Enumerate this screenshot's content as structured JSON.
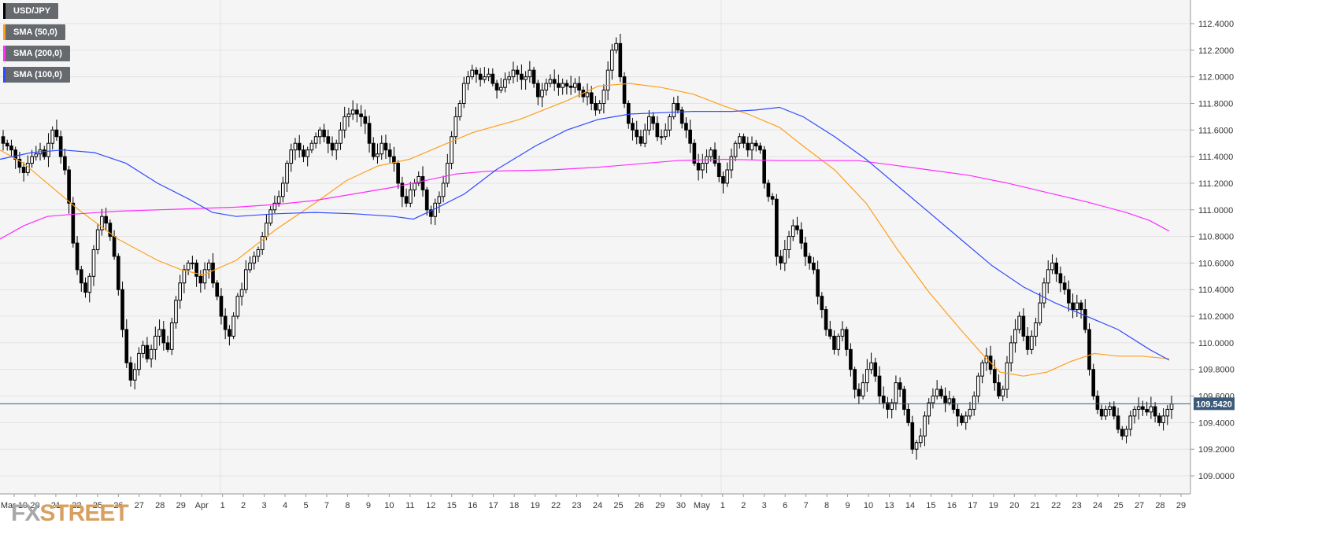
{
  "legend": [
    {
      "label": "USD/JPY",
      "color": "#000000"
    },
    {
      "label": "SMA (50,0)",
      "color": "#ff9f1c"
    },
    {
      "label": "SMA (200,0)",
      "color": "#ff2bff"
    },
    {
      "label": "SMA (100,0)",
      "color": "#2f4bff"
    }
  ],
  "logo": {
    "fx": "FX",
    "street": "STREET"
  },
  "colors": {
    "background": "#f5f5f5",
    "grid": "#e2e2e2",
    "price_line": "#3c5a7a",
    "candle_up": "#ffffff",
    "candle_down": "#000000"
  },
  "chart_data": {
    "type": "candlestick",
    "title": "",
    "xlabel": "",
    "ylabel": "",
    "ylim": [
      108.9,
      112.5
    ],
    "y_ticks": [
      "109.0000",
      "109.2000",
      "109.4000",
      "109.6000",
      "109.8000",
      "110.0000",
      "110.2000",
      "110.4000",
      "110.6000",
      "110.8000",
      "111.0000",
      "111.2000",
      "111.4000",
      "111.6000",
      "111.8000",
      "112.0000",
      "112.2000",
      "112.4000"
    ],
    "current_price": "109.5420",
    "x_ticks": [
      "Mar 19",
      "20",
      "21",
      "22",
      "25",
      "26",
      "27",
      "28",
      "29",
      "Apr",
      "1",
      "2",
      "3",
      "4",
      "5",
      "7",
      "8",
      "9",
      "10",
      "11",
      "12",
      "15",
      "16",
      "17",
      "18",
      "19",
      "22",
      "23",
      "24",
      "25",
      "26",
      "29",
      "30",
      "May",
      "1",
      "2",
      "3",
      "6",
      "7",
      "8",
      "9",
      "10",
      "13",
      "14",
      "15",
      "16",
      "17",
      "19",
      "20",
      "21",
      "22",
      "23",
      "24",
      "25",
      "27",
      "28",
      "29"
    ],
    "closes": [
      111.5,
      111.48,
      111.45,
      111.38,
      111.32,
      111.28,
      111.35,
      111.4,
      111.42,
      111.45,
      111.4,
      111.5,
      111.6,
      111.55,
      111.4,
      111.3,
      111.05,
      110.75,
      110.55,
      110.45,
      110.38,
      110.5,
      110.7,
      110.85,
      110.95,
      110.9,
      110.8,
      110.65,
      110.4,
      110.1,
      109.85,
      109.72,
      109.8,
      109.92,
      109.98,
      109.88,
      109.95,
      110.05,
      110.1,
      110.0,
      109.95,
      110.15,
      110.32,
      110.45,
      110.55,
      110.6,
      110.6,
      110.5,
      110.45,
      110.55,
      110.6,
      110.45,
      110.35,
      110.2,
      110.1,
      110.05,
      110.2,
      110.35,
      110.4,
      110.55,
      110.6,
      110.65,
      110.7,
      110.8,
      110.9,
      111.0,
      111.05,
      111.1,
      111.2,
      111.35,
      111.45,
      111.5,
      111.45,
      111.4,
      111.45,
      111.5,
      111.55,
      111.6,
      111.55,
      111.5,
      111.45,
      111.5,
      111.6,
      111.7,
      111.72,
      111.75,
      111.72,
      111.7,
      111.65,
      111.5,
      111.4,
      111.42,
      111.5,
      111.45,
      111.4,
      111.35,
      111.2,
      111.1,
      111.05,
      111.15,
      111.2,
      111.25,
      111.15,
      111.0,
      110.95,
      111.05,
      111.1,
      111.2,
      111.35,
      111.55,
      111.7,
      111.8,
      111.95,
      112.0,
      112.05,
      112.02,
      111.98,
      112.0,
      112.02,
      111.95,
      111.9,
      111.92,
      111.98,
      112.0,
      112.05,
      112.02,
      111.98,
      112.0,
      112.05,
      111.95,
      111.85,
      111.9,
      111.95,
      111.98,
      111.95,
      111.92,
      111.95,
      111.93,
      111.92,
      111.95,
      111.9,
      111.85,
      111.88,
      111.8,
      111.75,
      111.8,
      111.9,
      112.05,
      112.2,
      112.25,
      112.0,
      111.8,
      111.65,
      111.6,
      111.55,
      111.5,
      111.6,
      111.7,
      111.65,
      111.55,
      111.55,
      111.6,
      111.7,
      111.8,
      111.75,
      111.65,
      111.6,
      111.5,
      111.35,
      111.3,
      111.35,
      111.4,
      111.45,
      111.35,
      111.25,
      111.2,
      111.3,
      111.4,
      111.5,
      111.55,
      111.5,
      111.45,
      111.5,
      111.48,
      111.45,
      111.2,
      111.1,
      111.08,
      110.65,
      110.6,
      110.7,
      110.8,
      110.88,
      110.85,
      110.75,
      110.65,
      110.6,
      110.55,
      110.35,
      110.25,
      110.1,
      110.05,
      109.95,
      110.05,
      110.1,
      109.95,
      109.8,
      109.65,
      109.6,
      109.7,
      109.8,
      109.85,
      109.75,
      109.6,
      109.55,
      109.5,
      109.55,
      109.7,
      109.65,
      109.5,
      109.4,
      109.2,
      109.25,
      109.3,
      109.45,
      109.55,
      109.6,
      109.65,
      109.6,
      109.55,
      109.58,
      109.5,
      109.45,
      109.4,
      109.45,
      109.5,
      109.6,
      109.75,
      109.85,
      109.9,
      109.8,
      109.7,
      109.6,
      109.65,
      109.85,
      110.0,
      110.1,
      110.2,
      110.05,
      109.95,
      110.05,
      110.15,
      110.3,
      110.45,
      110.55,
      110.6,
      110.52,
      110.45,
      110.4,
      110.3,
      110.25,
      110.3,
      110.25,
      110.1,
      109.8,
      109.6,
      109.5,
      109.45,
      109.5,
      109.52,
      109.45,
      109.35,
      109.3,
      109.35,
      109.45,
      109.5,
      109.52,
      109.5,
      109.48,
      109.52,
      109.45,
      109.4,
      109.45,
      109.5,
      109.54
    ],
    "series": [
      {
        "name": "SMA (50,0)",
        "color": "#ff9f1c",
        "points": [
          [
            0,
            111.45
          ],
          [
            30,
            111.35
          ],
          [
            60,
            111.2
          ],
          [
            100,
            111.0
          ],
          [
            150,
            110.78
          ],
          [
            200,
            110.62
          ],
          [
            230,
            110.55
          ],
          [
            258,
            110.51
          ],
          [
            300,
            110.62
          ],
          [
            350,
            110.85
          ],
          [
            400,
            111.05
          ],
          [
            440,
            111.22
          ],
          [
            480,
            111.33
          ],
          [
            520,
            111.38
          ],
          [
            560,
            111.48
          ],
          [
            600,
            111.58
          ],
          [
            660,
            111.68
          ],
          [
            720,
            111.82
          ],
          [
            760,
            111.93
          ],
          [
            800,
            111.95
          ],
          [
            840,
            111.92
          ],
          [
            880,
            111.87
          ],
          [
            920,
            111.78
          ],
          [
            950,
            111.72
          ],
          [
            990,
            111.62
          ],
          [
            1020,
            111.48
          ],
          [
            1060,
            111.3
          ],
          [
            1100,
            111.05
          ],
          [
            1140,
            110.7
          ],
          [
            1180,
            110.38
          ],
          [
            1220,
            110.1
          ],
          [
            1250,
            109.9
          ],
          [
            1270,
            109.78
          ],
          [
            1300,
            109.75
          ],
          [
            1330,
            109.78
          ],
          [
            1360,
            109.86
          ],
          [
            1390,
            109.92
          ],
          [
            1420,
            109.9
          ],
          [
            1450,
            109.9
          ],
          [
            1485,
            109.88
          ]
        ]
      },
      {
        "name": "SMA (200,0)",
        "color": "#ff2bff",
        "points": [
          [
            0,
            110.78
          ],
          [
            30,
            110.88
          ],
          [
            60,
            110.95
          ],
          [
            100,
            110.97
          ],
          [
            150,
            110.99
          ],
          [
            200,
            111.0
          ],
          [
            250,
            111.01
          ],
          [
            300,
            111.02
          ],
          [
            350,
            111.04
          ],
          [
            400,
            111.07
          ],
          [
            450,
            111.12
          ],
          [
            500,
            111.17
          ],
          [
            540,
            111.22
          ],
          [
            580,
            111.27
          ],
          [
            620,
            111.29
          ],
          [
            700,
            111.3
          ],
          [
            760,
            111.32
          ],
          [
            800,
            111.34
          ],
          [
            860,
            111.37
          ],
          [
            920,
            111.38
          ],
          [
            990,
            111.37
          ],
          [
            1040,
            111.37
          ],
          [
            1090,
            111.37
          ],
          [
            1130,
            111.34
          ],
          [
            1180,
            111.3
          ],
          [
            1230,
            111.26
          ],
          [
            1280,
            111.2
          ],
          [
            1330,
            111.13
          ],
          [
            1380,
            111.06
          ],
          [
            1430,
            110.98
          ],
          [
            1460,
            110.92
          ],
          [
            1485,
            110.84
          ]
        ]
      },
      {
        "name": "SMA (100,0)",
        "color": "#2f4bff",
        "points": [
          [
            0,
            111.38
          ],
          [
            40,
            111.43
          ],
          [
            80,
            111.45
          ],
          [
            120,
            111.43
          ],
          [
            160,
            111.35
          ],
          [
            200,
            111.2
          ],
          [
            240,
            111.08
          ],
          [
            270,
            110.98
          ],
          [
            300,
            110.95
          ],
          [
            350,
            110.97
          ],
          [
            400,
            110.98
          ],
          [
            450,
            110.97
          ],
          [
            500,
            110.95
          ],
          [
            525,
            110.93
          ],
          [
            550,
            111.0
          ],
          [
            590,
            111.12
          ],
          [
            630,
            111.3
          ],
          [
            680,
            111.48
          ],
          [
            720,
            111.6
          ],
          [
            760,
            111.68
          ],
          [
            800,
            111.72
          ],
          [
            840,
            111.73
          ],
          [
            880,
            111.74
          ],
          [
            930,
            111.74
          ],
          [
            960,
            111.75
          ],
          [
            990,
            111.77
          ],
          [
            1020,
            111.7
          ],
          [
            1060,
            111.55
          ],
          [
            1100,
            111.38
          ],
          [
            1140,
            111.18
          ],
          [
            1180,
            110.98
          ],
          [
            1220,
            110.78
          ],
          [
            1260,
            110.58
          ],
          [
            1300,
            110.42
          ],
          [
            1340,
            110.3
          ],
          [
            1380,
            110.2
          ],
          [
            1420,
            110.1
          ],
          [
            1460,
            109.95
          ],
          [
            1485,
            109.87
          ]
        ]
      }
    ]
  }
}
